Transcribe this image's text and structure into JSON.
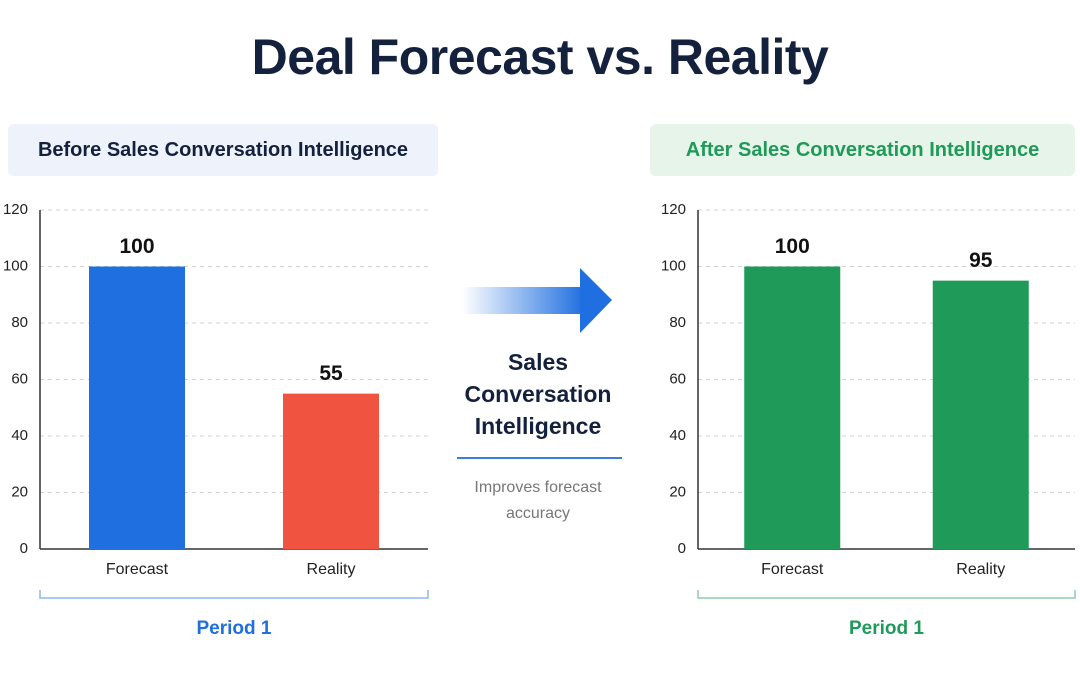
{
  "title": "Deal Forecast vs. Reality",
  "chart_data": [
    {
      "type": "bar",
      "title": "Before Sales Conversation Intelligence",
      "categories": [
        "Forecast",
        "Reality"
      ],
      "values": [
        100,
        55
      ],
      "colors": [
        "#1f6fe0",
        "#f0533f"
      ],
      "accent": "#1f6fe0",
      "ylim": [
        0,
        120
      ],
      "yticks": [
        0,
        20,
        40,
        60,
        80,
        100,
        120
      ],
      "grid": true,
      "group_label": "Period 1"
    },
    {
      "type": "bar",
      "title": "After Sales Conversation Intelligence",
      "categories": [
        "Forecast",
        "Reality"
      ],
      "values": [
        100,
        95
      ],
      "colors": [
        "#1f9a58",
        "#1f9a58"
      ],
      "accent": "#1f9a58",
      "ylim": [
        0,
        120
      ],
      "yticks": [
        0,
        20,
        40,
        60,
        80,
        100,
        120
      ],
      "grid": true,
      "group_label": "Period 1"
    }
  ],
  "center": {
    "label": "Sales Conversation Intelligence",
    "caption": "Improves forecast accuracy"
  }
}
